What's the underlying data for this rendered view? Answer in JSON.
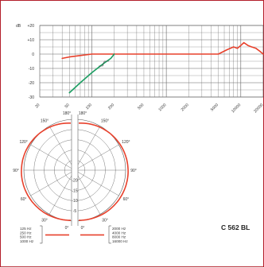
{
  "chart_data": [
    {
      "type": "line",
      "title": "",
      "xlabel": "",
      "ylabel": "",
      "x_scale": "log",
      "xlim": [
        20,
        20000
      ],
      "ylim": [
        -30,
        20
      ],
      "grid": true,
      "y_unit_label": "dB",
      "y_ticks": [
        "+20",
        "+10",
        "0",
        "-10",
        "-20",
        "-30"
      ],
      "x_ticks": [
        "20",
        "50",
        "100",
        "200",
        "500",
        "1000",
        "2000",
        "5000",
        "10000",
        "20000"
      ],
      "series": [
        {
          "color": "#e8412c",
          "x": [
            40,
            50,
            70,
            100,
            200,
            500,
            1000,
            2000,
            3000,
            5000,
            6500,
            8000,
            9000,
            10000,
            11000,
            12500,
            14000,
            16000,
            18000,
            20000
          ],
          "y": [
            -3,
            -2,
            -1,
            0,
            0,
            0,
            0,
            0,
            0,
            0,
            3,
            5,
            4,
            6,
            8,
            6,
            5,
            4,
            2,
            0
          ]
        },
        {
          "color": "#1c9e62",
          "x": [
            50,
            70,
            100,
            140,
            180,
            200
          ],
          "y": [
            -27,
            -20,
            -13,
            -7,
            -3,
            0
          ]
        }
      ]
    },
    {
      "type": "polar",
      "title": "",
      "angles_left": [
        "180°",
        "150°",
        "120°",
        "90°",
        "60°",
        "30°",
        "0°"
      ],
      "angles_right": [
        "180°",
        "150°",
        "120°",
        "90°",
        "60°",
        "30°",
        "0°"
      ],
      "radial_ticks": [
        "-20",
        "-15",
        "-10",
        "-5"
      ],
      "legend_left": [
        "125 Hz",
        "250 Hz",
        "500 Hz",
        "1000 Hz"
      ],
      "legend_right": [
        "2000 Hz",
        "4000 Hz",
        "8000 Hz",
        "16000 Hz"
      ]
    }
  ],
  "product": {
    "model": "C 562 BL"
  },
  "colors": {
    "accent": "#e8412c",
    "secondary": "#1c9e62",
    "border": "#b31f2b"
  }
}
